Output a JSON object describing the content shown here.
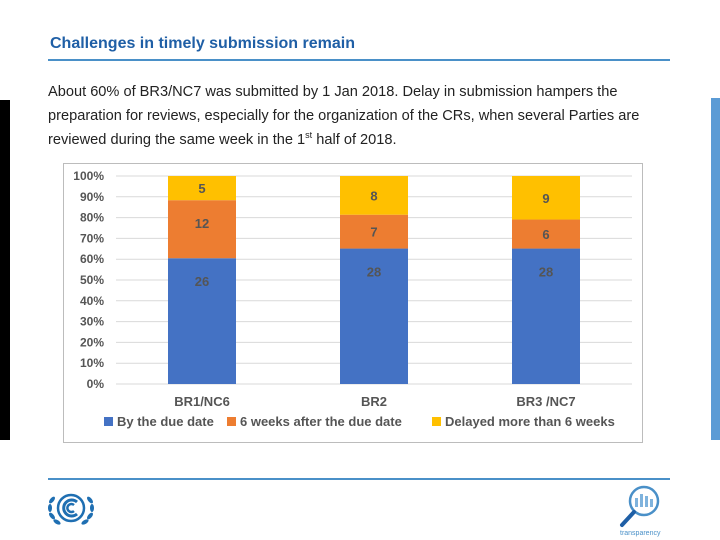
{
  "slide": {
    "title": "Challenges in timely submission remain",
    "body_main": "About 60% of BR3/NC7 was submitted by 1 Jan 2018. Delay in submission hampers the preparation for reviews, especially for the organization of the CRs, when several Parties are reviewed during the same week in the 1",
    "body_sup": "st",
    "body_end": " half of 2018.",
    "logo_right_text": "transparency"
  },
  "colors": {
    "title": "#1f5fa6",
    "rule": "#4a90c8",
    "series": [
      "#4472c4",
      "#ed7d31",
      "#ffc000"
    ]
  },
  "chart_data": {
    "type": "bar",
    "stacked": true,
    "percent_stacked": true,
    "categories": [
      "BR1/NC6",
      "BR2",
      "BR3 /NC7"
    ],
    "series": [
      {
        "name": "By the due date",
        "values": [
          26,
          28,
          28
        ]
      },
      {
        "name": "6 weeks after the due date",
        "values": [
          12,
          7,
          6
        ]
      },
      {
        "name": "Delayed more than 6 weeks",
        "values": [
          5,
          8,
          9
        ]
      }
    ],
    "y_ticks": [
      "0%",
      "10%",
      "20%",
      "30%",
      "40%",
      "50%",
      "60%",
      "70%",
      "80%",
      "90%",
      "100%"
    ],
    "ylim": [
      0,
      100
    ],
    "grid": true,
    "legend": "bottom"
  }
}
